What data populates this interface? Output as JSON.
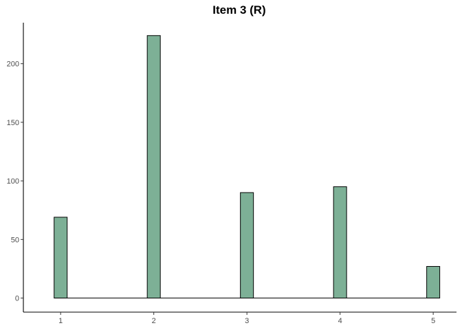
{
  "chart_data": {
    "type": "bar",
    "title": "Item 3 (R)",
    "xlabel": "",
    "ylabel": "",
    "categories": [
      "1",
      "2",
      "3",
      "4",
      "5"
    ],
    "values": [
      69,
      224,
      90,
      95,
      27
    ],
    "ylim": [
      -12,
      235
    ],
    "yticks": [
      0,
      50,
      100,
      150,
      200
    ],
    "xlim": [
      0.6,
      5.25
    ],
    "grid": false,
    "bar_fill": "#7db096",
    "bar_stroke": "#000000",
    "axis_color": "#000000",
    "tick_label_color": "#4d4d4d"
  }
}
